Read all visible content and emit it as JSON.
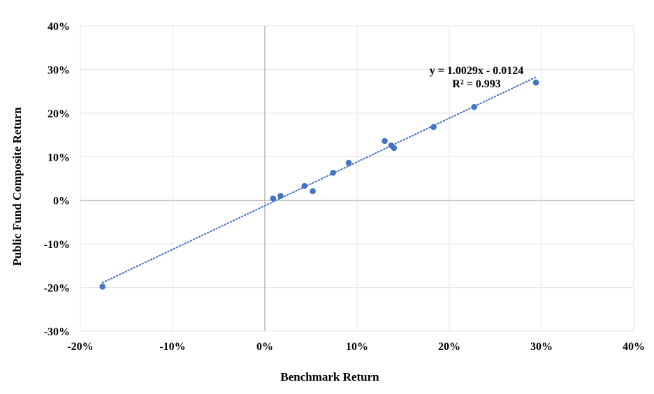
{
  "chart_data": {
    "type": "scatter",
    "xlabel": "Benchmark Return",
    "ylabel": "Public Fund Composite Return",
    "xlim": [
      -0.2,
      0.4
    ],
    "ylim": [
      -0.3,
      0.4
    ],
    "x_ticks": [
      -0.2,
      -0.1,
      0.0,
      0.1,
      0.2,
      0.3,
      0.4
    ],
    "x_tick_labels": [
      "-20%",
      "-10%",
      "0%",
      "10%",
      "20%",
      "30%",
      "40%"
    ],
    "y_ticks": [
      -0.3,
      -0.2,
      -0.1,
      0.0,
      0.1,
      0.2,
      0.3,
      0.4
    ],
    "y_tick_labels": [
      "-30%",
      "-20%",
      "-10%",
      "0%",
      "10%",
      "20%",
      "30%",
      "40%"
    ],
    "grid": true,
    "series": [
      {
        "color": "#4472C4",
        "points": [
          {
            "x": -0.176,
            "y": -0.198
          },
          {
            "x": 0.009,
            "y": 0.004
          },
          {
            "x": 0.017,
            "y": 0.01
          },
          {
            "x": 0.043,
            "y": 0.033
          },
          {
            "x": 0.052,
            "y": 0.021
          },
          {
            "x": 0.074,
            "y": 0.063
          },
          {
            "x": 0.091,
            "y": 0.086
          },
          {
            "x": 0.13,
            "y": 0.136
          },
          {
            "x": 0.137,
            "y": 0.126
          },
          {
            "x": 0.14,
            "y": 0.12
          },
          {
            "x": 0.183,
            "y": 0.168
          },
          {
            "x": 0.227,
            "y": 0.214
          },
          {
            "x": 0.294,
            "y": 0.27
          }
        ]
      }
    ],
    "trendline": {
      "type": "linear",
      "slope": 1.0029,
      "intercept": -0.0124,
      "x_range": [
        -0.176,
        0.294
      ],
      "color": "#4472C4",
      "style": "dotted"
    },
    "annotations": [
      "y = 1.0029x - 0.0124",
      "R² = 0.993"
    ]
  }
}
